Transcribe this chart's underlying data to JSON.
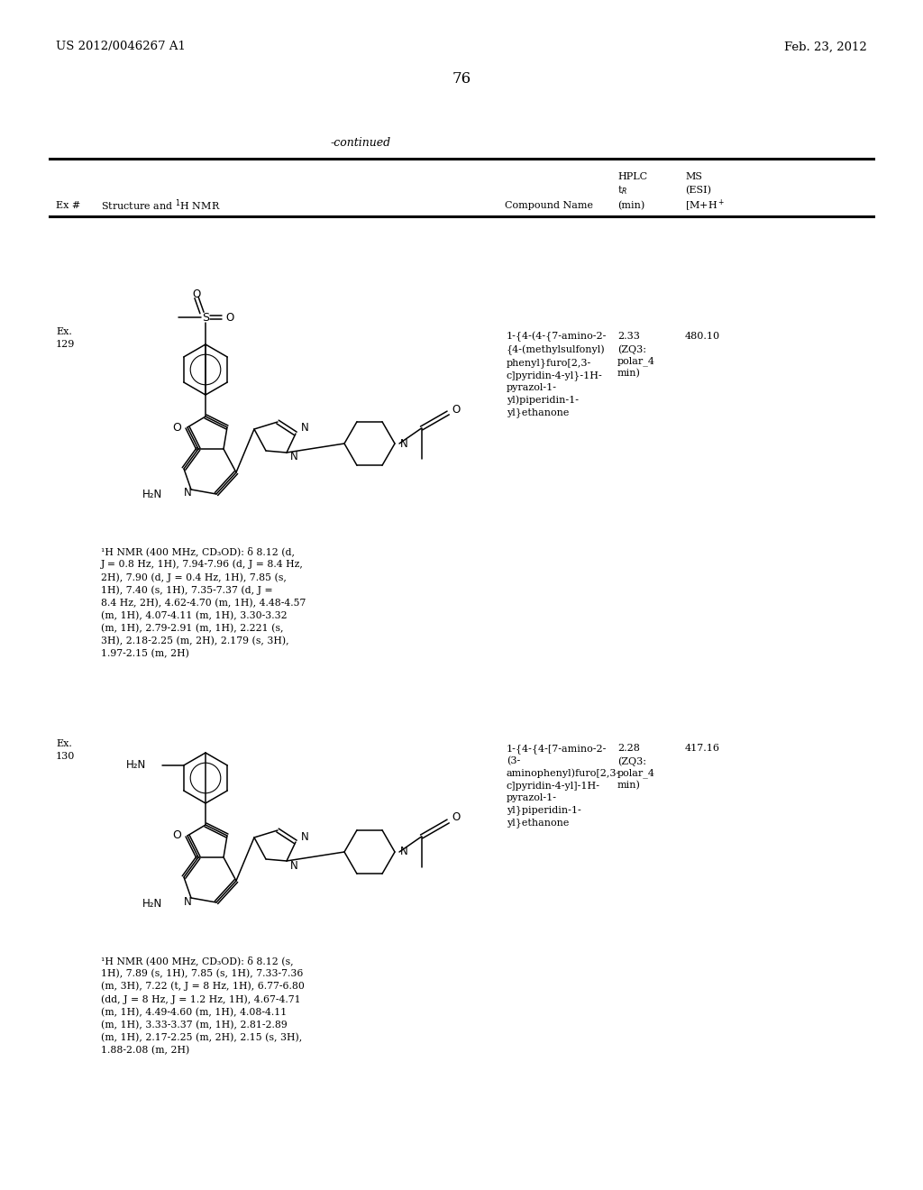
{
  "bg_color": "#ffffff",
  "header_left": "US 2012/0046267 A1",
  "header_right": "Feb. 23, 2012",
  "page_number": "76",
  "continued_text": "-continued",
  "entry_129": {
    "ex_label": "Ex.",
    "ex_num": "129",
    "compound_name": "1-{4-(4-{7-amino-2-\n{4-(methylsulfonyl)\nphenyl}furo[2,3-\nc]pyridin-4-yl}-1H-\npyrazol-1-\nyl)piperidin-1-\nyl}ethanone",
    "hplc": "2.33",
    "ms_val": "480.10",
    "ms_detail": "(ZQ3:\npolar_4\nmin)",
    "nmr": "¹H NMR (400 MHz, CD₃OD): δ 8.12 (d,\nJ = 0.8 Hz, 1H), 7.94-7.96 (d, J = 8.4 Hz,\n2H), 7.90 (d, J = 0.4 Hz, 1H), 7.85 (s,\n1H), 7.40 (s, 1H), 7.35-7.37 (d, J =\n8.4 Hz, 2H), 4.62-4.70 (m, 1H), 4.48-4.57\n(m, 1H), 4.07-4.11 (m, 1H), 3.30-3.32\n(m, 1H), 2.79-2.91 (m, 1H), 2.221 (s,\n3H), 2.18-2.25 (m, 2H), 2.179 (s, 3H),\n1.97-2.15 (m, 2H)"
  },
  "entry_130": {
    "ex_label": "Ex.",
    "ex_num": "130",
    "compound_name": "1-{4-{4-[7-amino-2-\n(3-\naminophenyl)furo[2,3-\nc]pyridin-4-yl]-1H-\npyrazol-1-\nyl}piperidin-1-\nyl}ethanone",
    "hplc": "2.28",
    "ms_val": "417.16",
    "ms_detail": "(ZQ3:\npolar_4\nmin)",
    "nmr": "¹H NMR (400 MHz, CD₃OD): δ 8.12 (s,\n1H), 7.89 (s, 1H), 7.85 (s, 1H), 7.33-7.36\n(m, 3H), 7.22 (t, J = 8 Hz, 1H), 6.77-6.80\n(dd, J = 8 Hz, J = 1.2 Hz, 1H), 4.67-4.71\n(m, 1H), 4.49-4.60 (m, 1H), 4.08-4.11\n(m, 1H), 3.33-3.37 (m, 1H), 2.81-2.89\n(m, 1H), 2.17-2.25 (m, 2H), 2.15 (s, 3H),\n1.88-2.08 (m, 2H)"
  }
}
